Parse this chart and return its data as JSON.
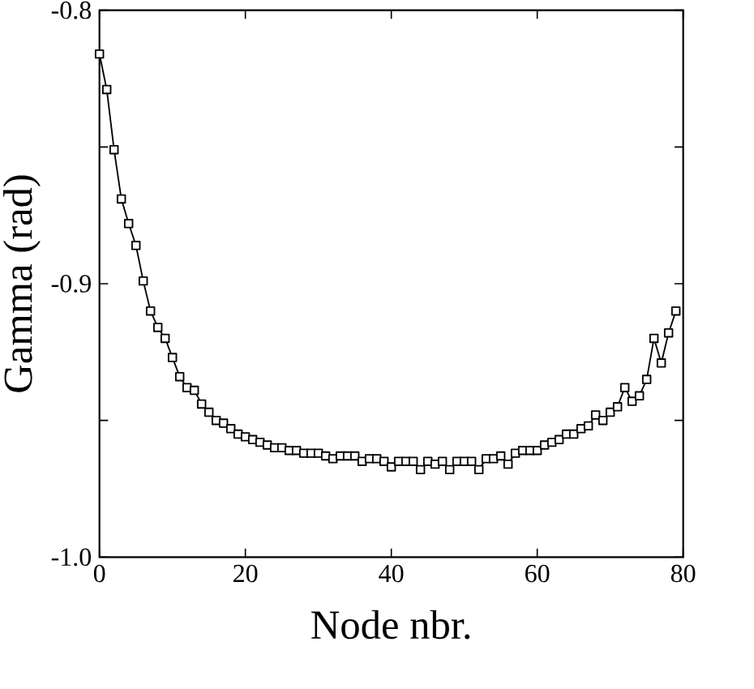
{
  "chart_data": {
    "type": "line",
    "xlabel": "Node nbr.",
    "ylabel": "Gamma (rad)",
    "marker": "square",
    "line_style": "solid",
    "grid": false,
    "x": [
      0,
      1,
      2,
      3,
      4,
      5,
      6,
      7,
      8,
      9,
      10,
      11,
      12,
      13,
      14,
      15,
      16,
      17,
      18,
      19,
      20,
      21,
      22,
      23,
      24,
      25,
      26,
      27,
      28,
      29,
      30,
      31,
      32,
      33,
      34,
      35,
      36,
      37,
      38,
      39,
      40,
      41,
      42,
      43,
      44,
      45,
      46,
      47,
      48,
      49,
      50,
      51,
      52,
      53,
      54,
      55,
      56,
      57,
      58,
      59,
      60,
      61,
      62,
      63,
      64,
      65,
      66,
      67,
      68,
      69,
      70,
      71,
      72,
      73,
      74,
      75,
      76,
      77,
      78,
      79
    ],
    "series": [
      {
        "color": "#000000",
        "values": [
          -0.816,
          -0.829,
          -0.851,
          -0.869,
          -0.878,
          -0.886,
          -0.899,
          -0.91,
          -0.916,
          -0.92,
          -0.927,
          -0.934,
          -0.938,
          -0.939,
          -0.944,
          -0.947,
          -0.95,
          -0.951,
          -0.953,
          -0.955,
          -0.956,
          -0.957,
          -0.958,
          -0.959,
          -0.96,
          -0.96,
          -0.961,
          -0.961,
          -0.962,
          -0.962,
          -0.962,
          -0.963,
          -0.964,
          -0.963,
          -0.963,
          -0.963,
          -0.965,
          -0.964,
          -0.964,
          -0.965,
          -0.967,
          -0.965,
          -0.965,
          -0.965,
          -0.968,
          -0.965,
          -0.966,
          -0.965,
          -0.968,
          -0.965,
          -0.965,
          -0.965,
          -0.968,
          -0.964,
          -0.964,
          -0.963,
          -0.966,
          -0.962,
          -0.961,
          -0.961,
          -0.961,
          -0.959,
          -0.958,
          -0.957,
          -0.955,
          -0.955,
          -0.953,
          -0.952,
          -0.948,
          -0.95,
          -0.947,
          -0.945,
          -0.938,
          -0.943,
          -0.941,
          -0.935,
          -0.92,
          -0.929,
          -0.918,
          -0.91
        ]
      }
    ],
    "xlim": [
      0,
      80
    ],
    "xticks": [
      0,
      20,
      40,
      60,
      80
    ],
    "ylim": [
      -1.0,
      -0.8
    ],
    "yticks": [
      {
        "value": -1.0,
        "label": "-1.0"
      },
      {
        "value": -0.95,
        "label": null
      },
      {
        "value": -0.9,
        "label": "-0.9"
      },
      {
        "value": -0.85,
        "label": null
      },
      {
        "value": -0.8,
        "label": "-0.8"
      }
    ]
  }
}
